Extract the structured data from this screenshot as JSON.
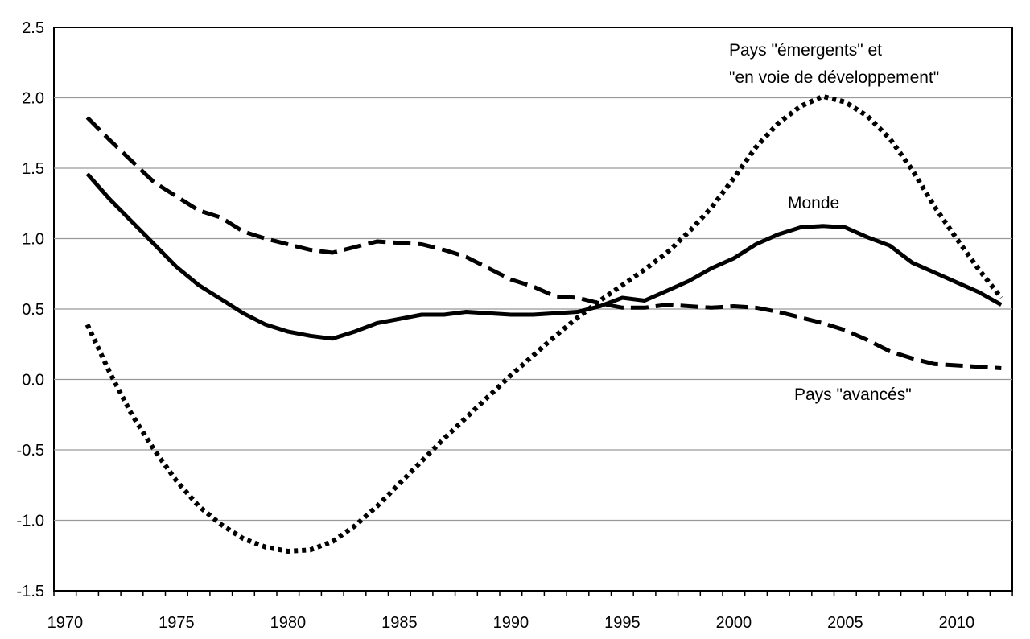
{
  "chart_data": {
    "type": "line",
    "title": "",
    "xlabel": "",
    "ylabel": "",
    "ylim": [
      -1.5,
      2.5
    ],
    "yticks": [
      "2.5",
      "2.0",
      "1.5",
      "1.0",
      "0.5",
      "0.0",
      "-0.5",
      "-1.0",
      "-1.5"
    ],
    "ytick_values": [
      2.5,
      2.0,
      1.5,
      1.0,
      0.5,
      0.0,
      -0.5,
      -1.0,
      -1.5
    ],
    "xlim": [
      1970,
      2012
    ],
    "xticks": [
      "1970",
      "1975",
      "1980",
      "1985",
      "1990",
      "1995",
      "2000",
      "2005",
      "2010"
    ],
    "xtick_values": [
      1970,
      1975,
      1980,
      1985,
      1990,
      1995,
      2000,
      2005,
      2010
    ],
    "grid": true,
    "x": [
      1971,
      1972,
      1973,
      1974,
      1975,
      1976,
      1977,
      1978,
      1979,
      1980,
      1981,
      1982,
      1983,
      1984,
      1985,
      1986,
      1987,
      1988,
      1989,
      1990,
      1991,
      1992,
      1993,
      1994,
      1995,
      1996,
      1997,
      1998,
      1999,
      2000,
      2001,
      2002,
      2003,
      2004,
      2005,
      2006,
      2007,
      2008,
      2009,
      2010,
      2011,
      2012
    ],
    "series": [
      {
        "name": "Monde",
        "style": "solid",
        "values": [
          1.46,
          1.28,
          1.12,
          0.96,
          0.8,
          0.67,
          0.57,
          0.47,
          0.39,
          0.34,
          0.31,
          0.29,
          0.34,
          0.4,
          0.43,
          0.46,
          0.46,
          0.48,
          0.47,
          0.46,
          0.46,
          0.47,
          0.48,
          0.52,
          0.58,
          0.56,
          0.63,
          0.7,
          0.79,
          0.86,
          0.96,
          1.03,
          1.08,
          1.09,
          1.08,
          1.01,
          0.95,
          0.83,
          0.76,
          0.69,
          0.62,
          0.53
        ]
      },
      {
        "name": "Pays \"avancés\"",
        "style": "dashed",
        "values": [
          1.86,
          1.7,
          1.55,
          1.4,
          1.3,
          1.2,
          1.15,
          1.05,
          1.0,
          0.96,
          0.92,
          0.9,
          0.94,
          0.98,
          0.97,
          0.96,
          0.92,
          0.87,
          0.79,
          0.71,
          0.66,
          0.59,
          0.58,
          0.54,
          0.51,
          0.51,
          0.53,
          0.52,
          0.51,
          0.52,
          0.51,
          0.48,
          0.44,
          0.4,
          0.35,
          0.28,
          0.2,
          0.15,
          0.11,
          0.1,
          0.09,
          0.08
        ]
      },
      {
        "name": "Pays \"émergents\"  et \"en voie de développement\"",
        "style": "dotted",
        "values": [
          0.39,
          0.05,
          -0.25,
          -0.5,
          -0.72,
          -0.9,
          -1.03,
          -1.13,
          -1.19,
          -1.22,
          -1.21,
          -1.15,
          -1.04,
          -0.9,
          -0.74,
          -0.58,
          -0.42,
          -0.27,
          -0.12,
          0.03,
          0.17,
          0.31,
          0.44,
          0.56,
          0.67,
          0.78,
          0.9,
          1.05,
          1.22,
          1.43,
          1.65,
          1.82,
          1.94,
          2.01,
          1.97,
          1.87,
          1.71,
          1.49,
          1.23,
          1.0,
          0.78,
          0.58
        ]
      }
    ],
    "annotations": {
      "emergents_line1": "Pays \"émergents\"  et",
      "emergents_line2": "\"en voie de développement\"",
      "monde": "Monde",
      "avances": "Pays \"avancés\""
    }
  }
}
